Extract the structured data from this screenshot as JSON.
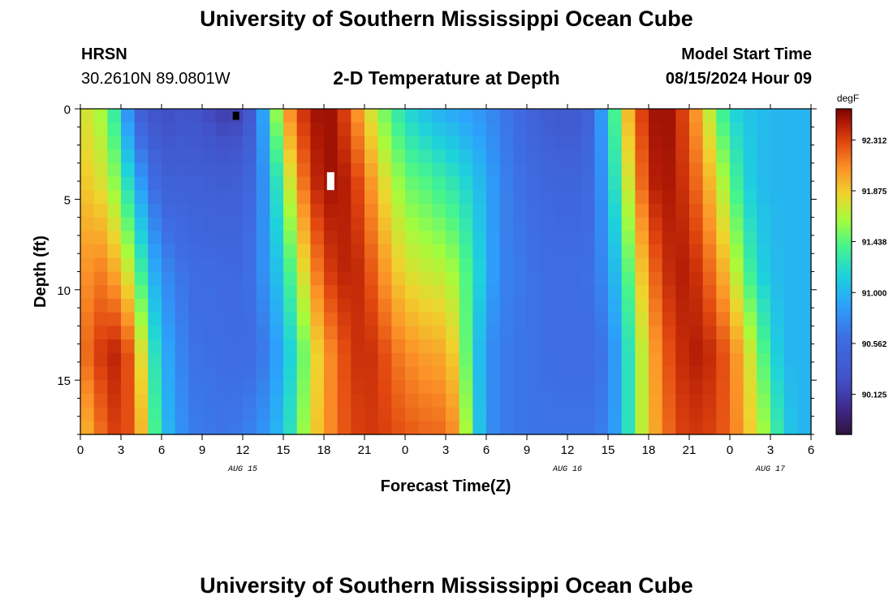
{
  "page": {
    "title": "University of Southern Mississippi Ocean Cube",
    "footer_title": "University of Southern Mississippi Ocean Cube",
    "station": "HRSN",
    "coords": "30.2610N  89.0801W",
    "subtitle": "2-D Temperature at Depth",
    "start_label": "Model Start Time",
    "start_value": "08/15/2024 Hour 09"
  },
  "chart_data": {
    "type": "heatmap",
    "title": "2-D Temperature at Depth",
    "xlabel": "Forecast Time(Z)",
    "ylabel": "Depth (ft)",
    "units": "degF",
    "x_range_hours": [
      0,
      54
    ],
    "y_range_ft": [
      0,
      18
    ],
    "x_tick_hours": [
      0,
      3,
      6,
      9,
      12,
      15,
      18,
      21,
      24,
      27,
      30,
      33,
      36,
      39,
      42,
      45,
      48,
      51,
      54
    ],
    "x_tick_labels": [
      "0",
      "3",
      "6",
      "9",
      "12",
      "15",
      "18",
      "21",
      "0",
      "3",
      "6",
      "9",
      "12",
      "15",
      "18",
      "21",
      "0",
      "3",
      "6"
    ],
    "y_ticks": [
      0,
      5,
      10,
      15
    ],
    "y_tick_labels": [
      "0",
      "5",
      "10",
      "15"
    ],
    "date_labels": [
      {
        "hour": 12,
        "text": "AUG 15"
      },
      {
        "hour": 36,
        "text": "AUG 16"
      },
      {
        "hour": 51,
        "text": "AUG 17"
      }
    ],
    "colorbar": {
      "label": "degF",
      "min": 89.78,
      "max": 92.58,
      "ticks": [
        90.125,
        90.562,
        91.0,
        91.438,
        91.875,
        92.312
      ],
      "tick_labels": [
        "90.125",
        "90.562",
        "91.000",
        "91.438",
        "91.875",
        "92.312"
      ]
    },
    "time_step_hours": 1,
    "depth_step_ft": 0.75,
    "profile_depths_ft": [
      0,
      4,
      9,
      13.5,
      18
    ],
    "profiles": [
      {
        "hour": 0,
        "temps": [
          91.8,
          91.9,
          92.0,
          92.1,
          91.9
        ]
      },
      {
        "hour": 1,
        "temps": [
          91.7,
          91.85,
          92.15,
          92.3,
          92.05
        ]
      },
      {
        "hour": 2,
        "temps": [
          91.55,
          91.7,
          92.1,
          92.4,
          92.3
        ]
      },
      {
        "hour": 3,
        "temps": [
          91.1,
          91.45,
          91.9,
          92.45,
          92.35
        ]
      },
      {
        "hour": 4,
        "temps": [
          90.5,
          91.0,
          91.6,
          92.1,
          92.2
        ]
      },
      {
        "hour": 5,
        "temps": [
          90.35,
          90.7,
          91.1,
          91.5,
          91.7
        ]
      },
      {
        "hour": 6,
        "temps": [
          90.2,
          90.45,
          90.8,
          91.0,
          91.1
        ]
      },
      {
        "hour": 8,
        "temps": [
          90.3,
          90.45,
          90.6,
          90.65,
          90.7
        ]
      },
      {
        "hour": 11,
        "temps": [
          90.1,
          90.4,
          90.55,
          90.6,
          90.65
        ]
      },
      {
        "hour": 12,
        "temps": [
          90.2,
          90.45,
          90.55,
          90.6,
          90.7
        ]
      },
      {
        "hour": 13,
        "temps": [
          90.5,
          90.6,
          90.7,
          90.6,
          90.75
        ]
      },
      {
        "hour": 14,
        "temps": [
          91.3,
          91.0,
          90.9,
          90.75,
          90.9
        ]
      },
      {
        "hour": 15,
        "temps": [
          91.9,
          91.5,
          91.2,
          91.0,
          91.1
        ]
      },
      {
        "hour": 16,
        "temps": [
          92.3,
          92.0,
          91.6,
          91.3,
          91.4
        ]
      },
      {
        "hour": 17,
        "temps": [
          92.45,
          92.35,
          92.0,
          91.7,
          91.8
        ]
      },
      {
        "hour": 18,
        "temps": [
          92.55,
          92.5,
          92.3,
          92.0,
          92.0
        ]
      },
      {
        "hour": 19,
        "temps": [
          92.45,
          92.5,
          92.4,
          92.2,
          92.2
        ]
      },
      {
        "hour": 20,
        "temps": [
          92.2,
          92.4,
          92.45,
          92.35,
          92.3
        ]
      },
      {
        "hour": 21,
        "temps": [
          91.9,
          92.2,
          92.35,
          92.4,
          92.35
        ]
      },
      {
        "hour": 22,
        "temps": [
          91.6,
          91.9,
          92.15,
          92.35,
          92.35
        ]
      },
      {
        "hour": 23,
        "temps": [
          91.4,
          91.7,
          91.95,
          92.2,
          92.3
        ]
      },
      {
        "hour": 24,
        "temps": [
          91.2,
          91.5,
          91.8,
          92.1,
          92.25
        ]
      },
      {
        "hour": 26,
        "temps": [
          91.0,
          91.4,
          91.7,
          92.0,
          92.2
        ]
      },
      {
        "hour": 27,
        "temps": [
          90.95,
          91.3,
          91.7,
          92.0,
          92.2
        ]
      },
      {
        "hour": 28,
        "temps": [
          90.9,
          91.25,
          91.55,
          91.75,
          92.0
        ]
      },
      {
        "hour": 29,
        "temps": [
          90.85,
          91.1,
          91.3,
          91.2,
          91.3
        ]
      },
      {
        "hour": 30,
        "temps": [
          90.8,
          90.95,
          91.0,
          90.85,
          90.85
        ]
      },
      {
        "hour": 31,
        "temps": [
          90.7,
          90.75,
          90.75,
          90.7,
          90.7
        ]
      },
      {
        "hour": 33,
        "temps": [
          90.5,
          90.6,
          90.65,
          90.65,
          90.65
        ]
      },
      {
        "hour": 35,
        "temps": [
          90.35,
          90.5,
          90.6,
          90.6,
          90.65
        ]
      },
      {
        "hour": 37,
        "temps": [
          90.35,
          90.5,
          90.6,
          90.6,
          90.65
        ]
      },
      {
        "hour": 38,
        "temps": [
          90.6,
          90.6,
          90.65,
          90.6,
          90.65
        ]
      },
      {
        "hour": 39,
        "temps": [
          91.1,
          91.0,
          90.85,
          90.7,
          90.75
        ]
      },
      {
        "hour": 40,
        "temps": [
          91.7,
          91.5,
          91.2,
          91.0,
          91.0
        ]
      },
      {
        "hour": 41,
        "temps": [
          92.2,
          92.0,
          91.7,
          91.5,
          91.5
        ]
      },
      {
        "hour": 42,
        "temps": [
          92.45,
          92.4,
          92.1,
          91.9,
          91.9
        ]
      },
      {
        "hour": 43,
        "temps": [
          92.55,
          92.5,
          92.35,
          92.2,
          92.1
        ]
      },
      {
        "hour": 44,
        "temps": [
          92.45,
          92.45,
          92.45,
          92.35,
          92.3
        ]
      },
      {
        "hour": 45,
        "temps": [
          92.2,
          92.3,
          92.45,
          92.45,
          92.35
        ]
      },
      {
        "hour": 46,
        "temps": [
          91.9,
          92.1,
          92.3,
          92.45,
          92.35
        ]
      },
      {
        "hour": 47,
        "temps": [
          91.5,
          91.8,
          92.1,
          92.35,
          92.3
        ]
      },
      {
        "hour": 48,
        "temps": [
          91.2,
          91.5,
          91.85,
          92.2,
          92.2
        ]
      },
      {
        "hour": 49,
        "temps": [
          91.1,
          91.2,
          91.5,
          91.9,
          92.0
        ]
      },
      {
        "hour": 50,
        "temps": [
          91.05,
          91.05,
          91.2,
          91.6,
          91.75
        ]
      },
      {
        "hour": 51,
        "temps": [
          91.0,
          91.0,
          91.05,
          91.25,
          91.5
        ]
      },
      {
        "hour": 52,
        "temps": [
          91.0,
          91.0,
          91.0,
          91.0,
          91.15
        ]
      },
      {
        "hour": 53,
        "temps": [
          91.0,
          91.0,
          91.0,
          91.0,
          91.0
        ]
      },
      {
        "hour": 54,
        "temps": [
          91.0,
          91.0,
          91.0,
          91.0,
          91.0
        ]
      }
    ],
    "missing_cells": [
      {
        "hour": 11.5,
        "depth_ft": 0.25,
        "color": "#000000"
      },
      {
        "hour": 18.5,
        "depth_ft": 4.0,
        "color": "#ffffff"
      }
    ]
  }
}
